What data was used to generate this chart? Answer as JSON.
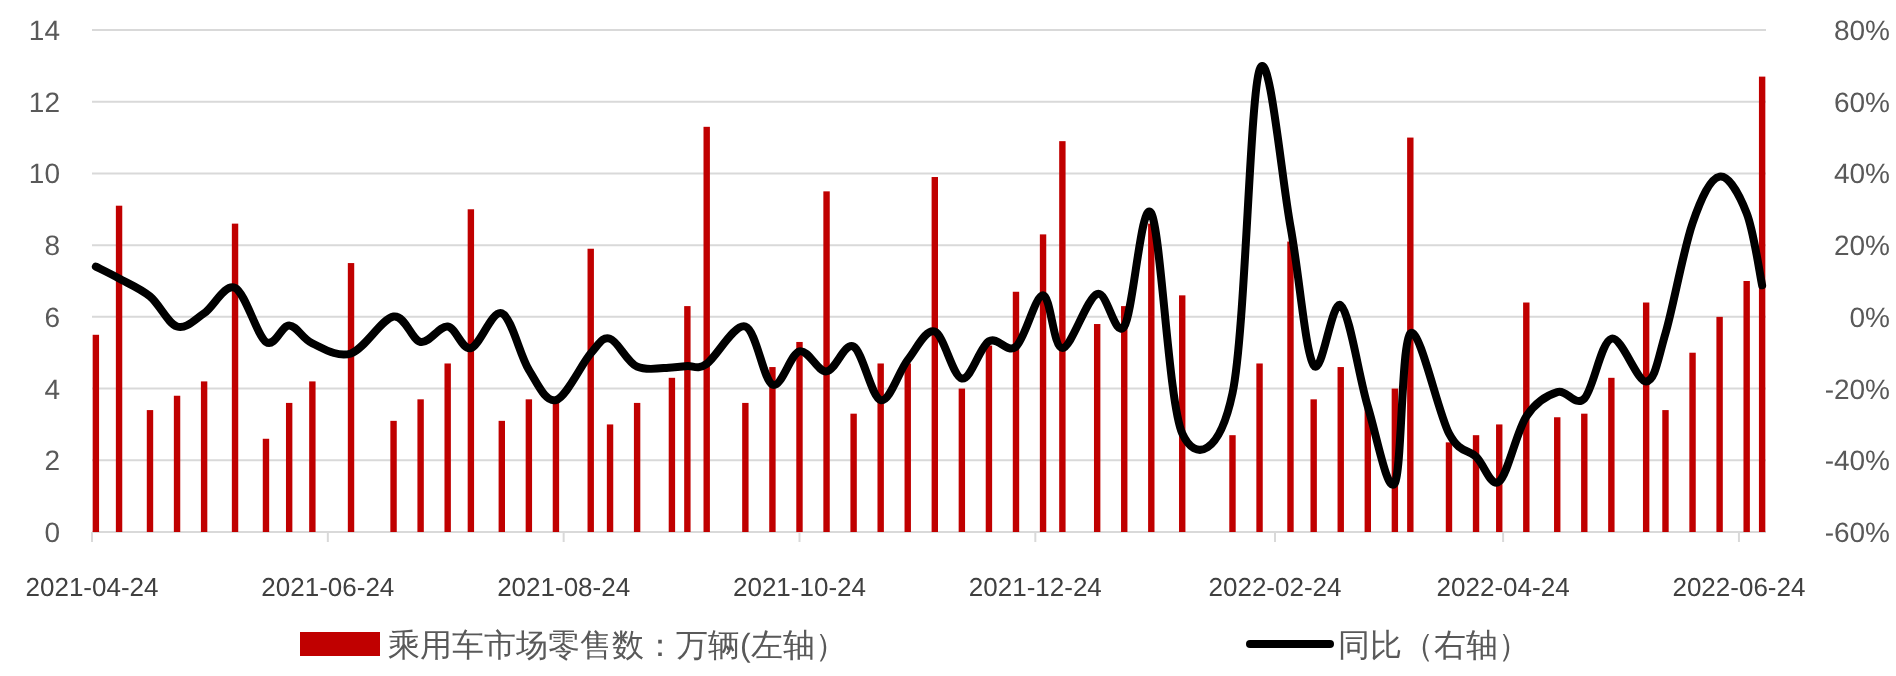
{
  "chart_data": {
    "type": "bar",
    "x": [
      "2021-04-25",
      "2021-05-01",
      "2021-05-09",
      "2021-05-16",
      "2021-05-23",
      "2021-05-31",
      "2021-06-08",
      "2021-06-14",
      "2021-06-20",
      "2021-06-30",
      "2021-07-11",
      "2021-07-18",
      "2021-07-25",
      "2021-07-31",
      "2021-08-08",
      "2021-08-15",
      "2021-08-22",
      "2021-08-31",
      "2021-09-05",
      "2021-09-12",
      "2021-09-21",
      "2021-09-25",
      "2021-09-30",
      "2021-10-10",
      "2021-10-17",
      "2021-10-24",
      "2021-10-31",
      "2021-11-07",
      "2021-11-14",
      "2021-11-21",
      "2021-11-28",
      "2021-12-05",
      "2021-12-12",
      "2021-12-19",
      "2021-12-26",
      "2021-12-31",
      "2022-01-09",
      "2022-01-16",
      "2022-01-23",
      "2022-01-31",
      "2022-02-13",
      "2022-02-20",
      "2022-02-28",
      "2022-03-06",
      "2022-03-13",
      "2022-03-20",
      "2022-03-27",
      "2022-03-31",
      "2022-04-10",
      "2022-04-17",
      "2022-04-23",
      "2022-04-30",
      "2022-05-08",
      "2022-05-15",
      "2022-05-22",
      "2022-05-31",
      "2022-06-05",
      "2022-06-12",
      "2022-06-19",
      "2022-06-26",
      "2022-06-30"
    ],
    "series": [
      {
        "name": "乘用车市场零售数：万辆(左轴）",
        "color": "#c00000",
        "values": [
          5.5,
          9.1,
          3.4,
          3.8,
          4.2,
          8.6,
          2.6,
          3.6,
          4.2,
          7.5,
          3.1,
          3.7,
          4.7,
          9.0,
          3.1,
          3.7,
          3.6,
          7.9,
          3.0,
          3.6,
          4.3,
          6.3,
          11.3,
          3.6,
          4.6,
          5.3,
          9.5,
          3.3,
          4.7,
          4.7,
          9.9,
          4.0,
          5.2,
          6.7,
          8.3,
          10.9,
          5.8,
          6.3,
          8.6,
          6.6,
          2.7,
          4.7,
          8.1,
          3.7,
          4.6,
          3.6,
          4.0,
          11.0,
          2.5,
          2.7,
          3.0,
          6.4,
          3.2,
          3.3,
          4.3,
          6.4,
          3.4,
          5.0,
          6.0,
          7.0,
          12.7
        ]
      },
      {
        "name": "同比（右轴）",
        "type": "line",
        "axis": "y2",
        "color": "#000000",
        "values": [
          14,
          10.7,
          5.7,
          -2.7,
          1,
          8.1,
          -7,
          -2.4,
          -7.4,
          -10.2,
          0.1,
          -7,
          -2.7,
          -8.7,
          1,
          -14.8,
          -23.2,
          -10.2,
          -6.1,
          -13.9,
          -14.1,
          -13.7,
          -13.1,
          -2.7,
          -18.9,
          -9.6,
          -15.2,
          -8.3,
          -23.2,
          -12,
          -4.1,
          -17.2,
          -6.8,
          -8.3,
          6,
          -8.7,
          6.4,
          -2.7,
          28.9,
          -32.5,
          -21.3,
          68.9,
          25.2,
          -13.5,
          3.2,
          -25,
          -46.4,
          -4.6,
          -32.5,
          -39,
          -45.9,
          -27.8,
          -21,
          -22.8,
          -6.1,
          -18,
          -4.6,
          26.1,
          39.1,
          28.9,
          8.8
        ]
      }
    ],
    "xlim": [
      "2021-04-24",
      "2022-07-01"
    ],
    "xticks": [
      "2021-04-24",
      "2021-06-24",
      "2021-08-24",
      "2021-10-24",
      "2021-12-24",
      "2022-02-24",
      "2022-04-24",
      "2022-06-24"
    ],
    "ylim": [
      0,
      14
    ],
    "yticks": [
      0,
      2,
      4,
      6,
      8,
      10,
      12,
      14
    ],
    "y2lim": [
      -60,
      80
    ],
    "y2ticks": [
      {
        "value": -60,
        "label": "-60%"
      },
      {
        "value": -40,
        "label": "-40%"
      },
      {
        "value": -20,
        "label": "-20%"
      },
      {
        "value": 0,
        "label": "0%"
      },
      {
        "value": 20,
        "label": "20%"
      },
      {
        "value": 40,
        "label": "40%"
      },
      {
        "value": 60,
        "label": "60%"
      },
      {
        "value": 80,
        "label": "80%"
      }
    ],
    "grid": "y",
    "legend": "bottom"
  }
}
